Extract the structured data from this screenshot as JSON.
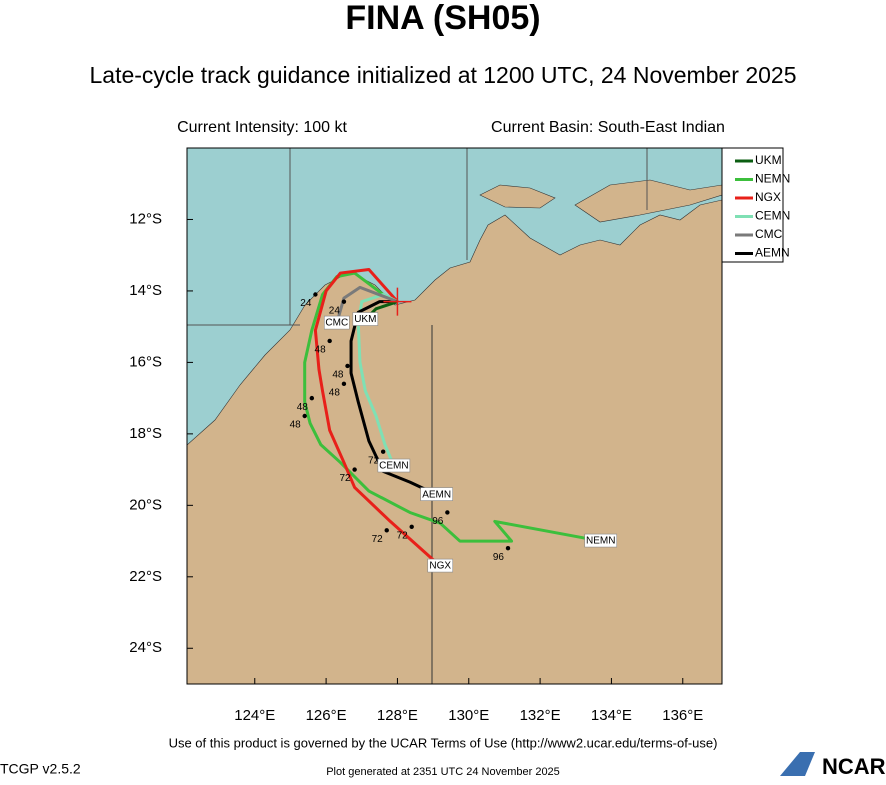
{
  "header": {
    "title": "FINA (SH05)",
    "subtitle": "Late-cycle track guidance initialized at 1200 UTC, 24 November 2025",
    "intensity": "Current Intensity: 100 kt",
    "basin": "Current Basin: South-East Indian"
  },
  "map": {
    "lonlim": [
      122.1,
      137.1
    ],
    "latlim": [
      -25,
      -10
    ],
    "xticks": [
      {
        "value": 124,
        "label": "124°E"
      },
      {
        "value": 126,
        "label": "126°E"
      },
      {
        "value": 128,
        "label": "128°E"
      },
      {
        "value": 130,
        "label": "130°E"
      },
      {
        "value": 132,
        "label": "132°E"
      },
      {
        "value": 134,
        "label": "134°E"
      },
      {
        "value": 136,
        "label": "136°E"
      }
    ],
    "yticks": [
      {
        "value": -12,
        "label": "12°S"
      },
      {
        "value": -14,
        "label": "14°S"
      },
      {
        "value": -16,
        "label": "16°S"
      },
      {
        "value": -18,
        "label": "18°S"
      },
      {
        "value": -20,
        "label": "20°S"
      },
      {
        "value": -22,
        "label": "22°S"
      },
      {
        "value": -24,
        "label": "24°S"
      }
    ],
    "center": {
      "lon": 128.0,
      "lat": -14.3
    },
    "series": [
      {
        "name": "UKM",
        "color": "#0b5e12",
        "lon": [
          128.0,
          127.4,
          127.1
        ],
        "lat": [
          -14.3,
          -14.5,
          -14.8
        ]
      },
      {
        "name": "NEMN",
        "color": "#3cbf3c",
        "lon": [
          128.0,
          127.6,
          126.8,
          126.3,
          125.9,
          125.6,
          125.4,
          125.4,
          125.55,
          125.85,
          126.4,
          127.2,
          128.35,
          129.2,
          129.75,
          130.6,
          131.2,
          130.73,
          133.7
        ],
        "lat": [
          -14.3,
          -14.1,
          -13.5,
          -13.6,
          -14.1,
          -15.1,
          -16.0,
          -17.1,
          -17.7,
          -18.3,
          -18.8,
          -19.6,
          -20.2,
          -20.5,
          -21.0,
          -21.0,
          -21.0,
          -20.45,
          -21.0
        ]
      },
      {
        "name": "NGX",
        "color": "#e8201a",
        "lon": [
          128.0,
          127.2,
          126.4,
          126.0,
          125.7,
          125.8,
          125.9,
          126.1,
          126.5,
          126.8,
          127.8,
          129.2
        ],
        "lat": [
          -14.3,
          -13.4,
          -13.5,
          -14.0,
          -15.1,
          -16.2,
          -16.8,
          -17.9,
          -18.8,
          -19.5,
          -20.45,
          -21.7
        ]
      },
      {
        "name": "CEMN",
        "color": "#7fe0b4",
        "lon": [
          128.0,
          127.6,
          127.0,
          126.9,
          126.95,
          127.1,
          127.4,
          127.65,
          127.9
        ],
        "lat": [
          -14.3,
          -14.1,
          -14.3,
          -14.9,
          -16.0,
          -16.8,
          -17.5,
          -18.3,
          -18.9
        ]
      },
      {
        "name": "CMC",
        "color": "#7a7a7a",
        "lon": [
          128.0,
          126.95,
          126.5,
          126.3
        ],
        "lat": [
          -14.3,
          -13.9,
          -14.2,
          -14.9
        ]
      },
      {
        "name": "AEMN",
        "color": "#000000",
        "lon": [
          128.0,
          127.5,
          126.9,
          126.7,
          126.7,
          126.9,
          127.2,
          127.6,
          128.35,
          129.1
        ],
        "lat": [
          -14.3,
          -14.3,
          -14.6,
          -15.4,
          -16.3,
          -17.1,
          -18.2,
          -19.05,
          -19.35,
          -19.7
        ]
      }
    ],
    "hour_labels": [
      {
        "text": "24",
        "lon": 126.5,
        "lat": -14.3
      },
      {
        "text": "24",
        "lon": 125.7,
        "lat": -14.1
      },
      {
        "text": "48",
        "lon": 126.1,
        "lat": -15.4
      },
      {
        "text": "48",
        "lon": 126.6,
        "lat": -16.1
      },
      {
        "text": "48",
        "lon": 126.5,
        "lat": -16.6
      },
      {
        "text": "48",
        "lon": 125.6,
        "lat": -17.0
      },
      {
        "text": "48",
        "lon": 125.4,
        "lat": -17.5
      },
      {
        "text": "72",
        "lon": 127.6,
        "lat": -18.5
      },
      {
        "text": "72",
        "lon": 126.8,
        "lat": -19.0
      },
      {
        "text": "72",
        "lon": 127.7,
        "lat": -20.7
      },
      {
        "text": "72",
        "lon": 128.4,
        "lat": -20.6
      },
      {
        "text": "96",
        "lon": 129.4,
        "lat": -20.2
      },
      {
        "text": "96",
        "lon": 131.1,
        "lat": -21.2
      }
    ]
  },
  "footer": {
    "terms": "Use of this product is governed by the UCAR Terms of Use (http://www2.ucar.edu/terms-of-use)",
    "version": "TCGP v2.5.2",
    "generated": "Plot generated at 2351 UTC   24 November 2025",
    "logo": "NCAR"
  }
}
